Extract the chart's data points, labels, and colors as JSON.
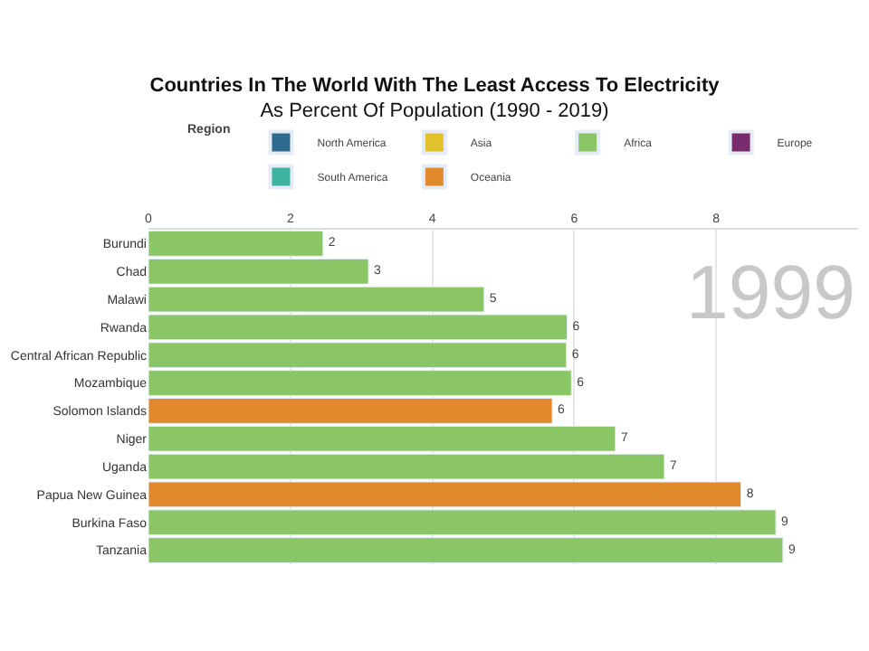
{
  "chart_data": {
    "type": "bar",
    "orientation": "horizontal",
    "title": "Countries In The World With The Least Access To Electricity",
    "subtitle": "As Percent Of Population (1990 - 2019)",
    "legend_title": "Region",
    "legend": "top",
    "categories": [
      "Burundi",
      "Chad",
      "Malawi",
      "Rwanda",
      "Central African Republic",
      "Mozambique",
      "Solomon Islands",
      "Niger",
      "Uganda",
      "Papua New Guinea",
      "Burkina Faso",
      "Tanzania"
    ],
    "series": [
      {
        "name": "North America",
        "color": "#2f6b8f",
        "values": [
          null,
          null,
          null,
          null,
          null,
          null,
          null,
          null,
          null,
          null,
          null,
          null
        ]
      },
      {
        "name": "Asia",
        "color": "#e3c12b",
        "values": [
          null,
          null,
          null,
          null,
          null,
          null,
          null,
          null,
          null,
          null,
          null,
          null
        ]
      },
      {
        "name": "Africa",
        "color": "#8bc666",
        "values": [
          2.46,
          3.1,
          4.73,
          5.9,
          5.89,
          5.96,
          null,
          6.58,
          7.27,
          null,
          8.84,
          8.94
        ]
      },
      {
        "name": "Europe",
        "color": "#7a2b6e",
        "values": [
          null,
          null,
          null,
          null,
          null,
          null,
          null,
          null,
          null,
          null,
          null,
          null
        ]
      },
      {
        "name": "South America",
        "color": "#3db3a0",
        "values": [
          null,
          null,
          null,
          null,
          null,
          null,
          null,
          null,
          null,
          null,
          null,
          null
        ]
      },
      {
        "name": "Oceania",
        "color": "#e08a2c",
        "values": [
          null,
          null,
          null,
          null,
          null,
          null,
          5.69,
          null,
          null,
          8.35,
          null,
          null
        ]
      }
    ],
    "value_labels": [
      "2",
      "3",
      "5",
      "6",
      "6",
      "6",
      "6",
      "7",
      "7",
      "8",
      "9",
      "9"
    ],
    "xlim": [
      0,
      10
    ],
    "xticks": [
      0,
      2,
      4,
      6,
      8
    ],
    "grid": "x",
    "annotations": [
      "1999"
    ]
  }
}
